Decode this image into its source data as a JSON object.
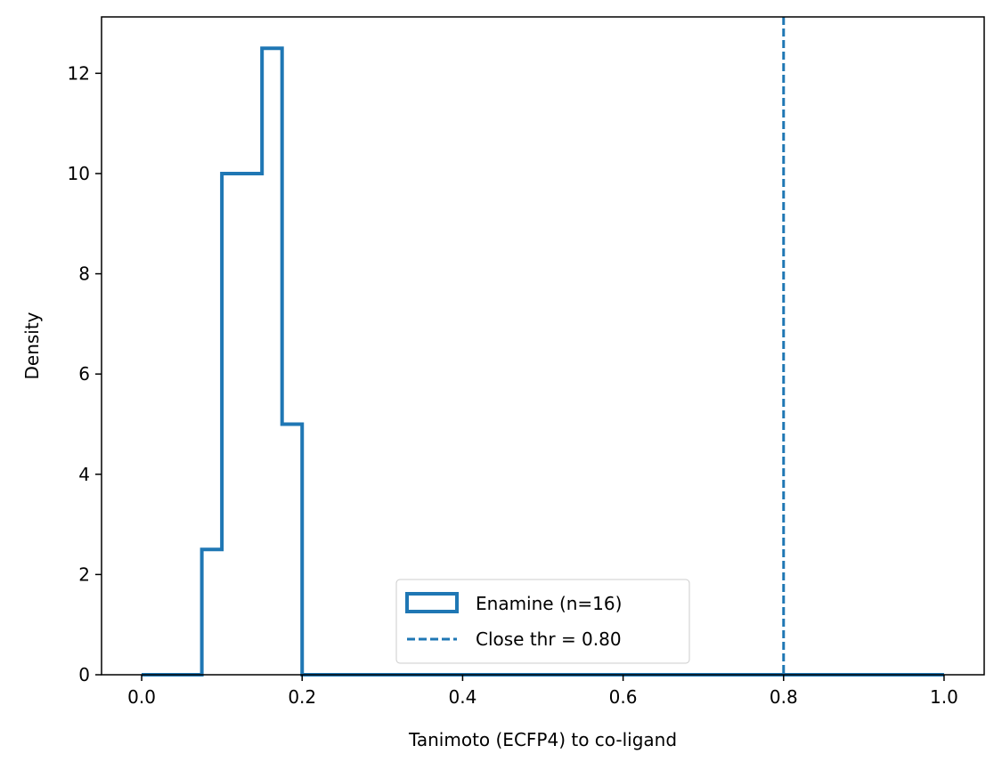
{
  "chart_data": {
    "type": "histogram",
    "title": "",
    "xlabel": "Tanimoto (ECFP4) to co-ligand",
    "ylabel": "Density",
    "xlim": [
      -0.05,
      1.05
    ],
    "ylim": [
      0,
      13.125
    ],
    "xticks": [
      0.0,
      0.2,
      0.4,
      0.6,
      0.8,
      1.0
    ],
    "xtick_labels": [
      "0.0",
      "0.2",
      "0.4",
      "0.6",
      "0.8",
      "1.0"
    ],
    "yticks": [
      0,
      2,
      4,
      6,
      8,
      10,
      12
    ],
    "ytick_labels": [
      "0",
      "2",
      "4",
      "6",
      "8",
      "10",
      "12"
    ],
    "grid": false,
    "legend_position": "bottom-center",
    "series": [
      {
        "name": "Enamine (n=16)",
        "style": "step",
        "color": "#1f77b4",
        "bin_edges": [
          0.0,
          0.025,
          0.05,
          0.075,
          0.1,
          0.125,
          0.15,
          0.175,
          0.2,
          0.225,
          0.25,
          0.275,
          0.3,
          0.325,
          0.35,
          0.375,
          0.4,
          0.425,
          0.45,
          0.475,
          0.5,
          0.525,
          0.55,
          0.575,
          0.6,
          0.625,
          0.65,
          0.675,
          0.7,
          0.725,
          0.75,
          0.775,
          0.8,
          0.825,
          0.85,
          0.875,
          0.9,
          0.925,
          0.95,
          0.975,
          1.0
        ],
        "densities": [
          0,
          0,
          0,
          2.5,
          10,
          10,
          12.5,
          5,
          0,
          0,
          0,
          0,
          0,
          0,
          0,
          0,
          0,
          0,
          0,
          0,
          0,
          0,
          0,
          0,
          0,
          0,
          0,
          0,
          0,
          0,
          0,
          0,
          0,
          0,
          0,
          0,
          0,
          0,
          0,
          0
        ]
      }
    ],
    "reference_lines": [
      {
        "name": "Close thr = 0.80",
        "x": 0.8,
        "style": "dashed",
        "color": "#1f77b4"
      }
    ]
  }
}
